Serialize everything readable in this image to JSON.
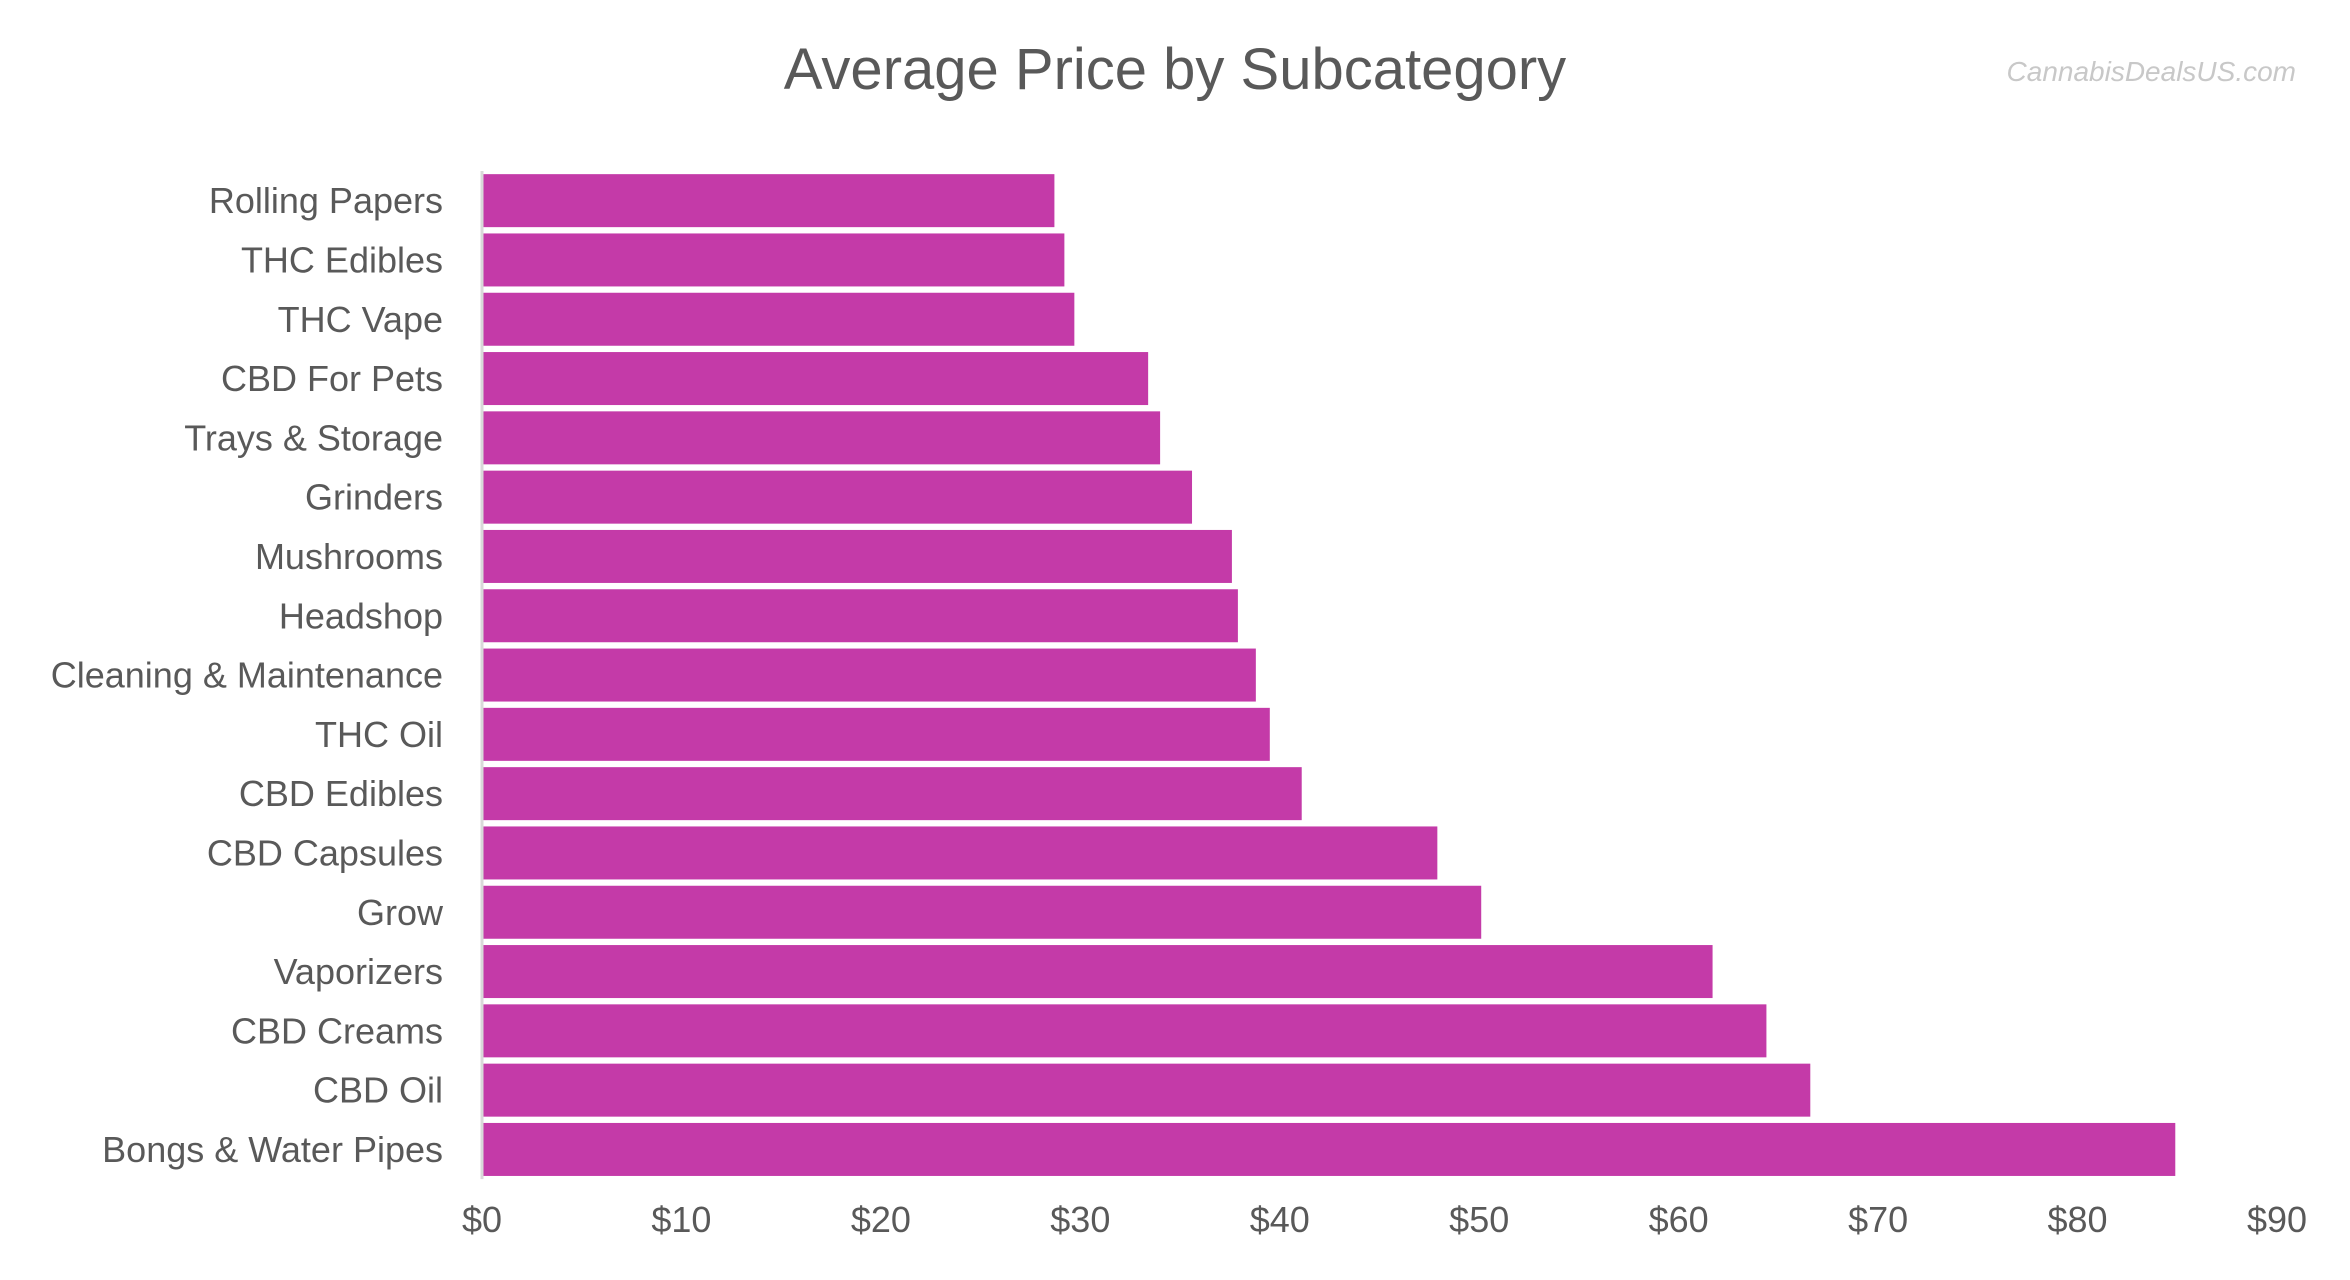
{
  "header": {
    "watermark": "CannabisDealsUS.com"
  },
  "chart_data": {
    "type": "bar",
    "orientation": "horizontal",
    "title": "Average Price by Subcategory",
    "xlabel": "",
    "ylabel": "",
    "categories": [
      "Rolling Papers",
      "THC Edibles",
      "THC Vape",
      "CBD For Pets",
      "Trays & Storage",
      "Grinders",
      "Mushrooms",
      "Headshop",
      "Cleaning & Maintenance",
      "THC Oil",
      "CBD Edibles",
      "CBD Capsules",
      "Grow",
      "Vaporizers",
      "CBD Creams",
      "CBD Oil",
      "Bongs & Water Pipes"
    ],
    "values": [
      28.7,
      29.2,
      29.7,
      33.4,
      34.0,
      35.6,
      37.6,
      37.9,
      38.8,
      39.5,
      41.1,
      47.9,
      50.1,
      61.7,
      64.4,
      66.6,
      84.9
    ],
    "xlim": [
      0,
      90
    ],
    "ticks": [
      0,
      10,
      20,
      30,
      40,
      50,
      60,
      70,
      80,
      90
    ],
    "tick_labels": [
      "$0",
      "$10",
      "$20",
      "$30",
      "$40",
      "$50",
      "$60",
      "$70",
      "$80",
      "$90"
    ],
    "grid": false,
    "legend": "none",
    "bar_color": "#c43aa8",
    "axis_color": "#d9d9d9",
    "text_color": "#595959"
  }
}
